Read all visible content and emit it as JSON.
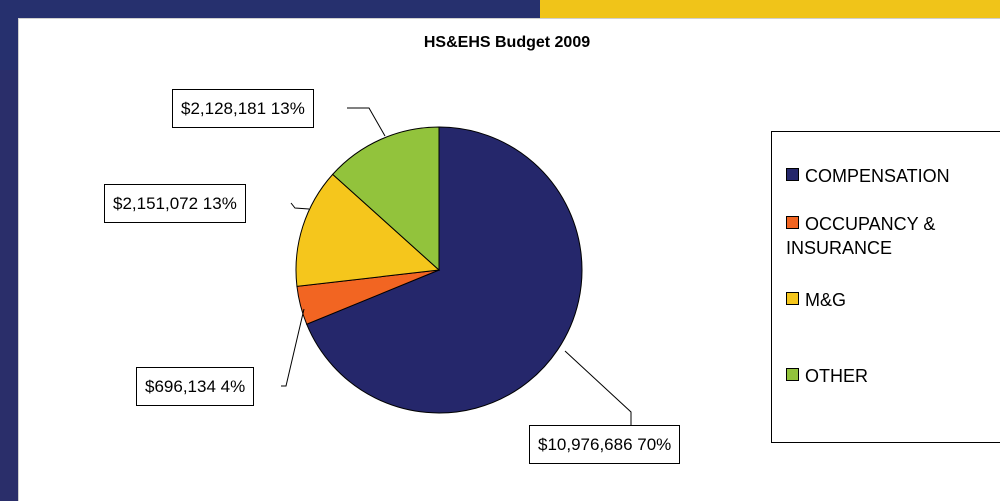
{
  "chart_data": {
    "type": "pie",
    "title": "HS&EHS Budget 2009",
    "slices": [
      {
        "label": "COMPENSATION",
        "value": 10976686,
        "percent": 70,
        "color": "#25276b",
        "display_value": "$10,976,686",
        "display_percent": "70%"
      },
      {
        "label": "OCCUPANCY & INSURANCE",
        "value": 696134,
        "percent": 4,
        "color": "#f26522",
        "display_value": "$696,134",
        "display_percent": "4%"
      },
      {
        "label": "M&G",
        "value": 2151072,
        "percent": 13,
        "color": "#f5c61c",
        "display_value": "$2,151,072",
        "display_percent": "13%"
      },
      {
        "label": "OTHER",
        "value": 2128181,
        "percent": 13,
        "color": "#92c33c",
        "display_value": "$2,128,181",
        "display_percent": "13%"
      }
    ],
    "legend": {
      "placement": "right",
      "items": [
        "COMPENSATION",
        "OCCUPANCY &",
        "INSURANCE",
        "M&G",
        "OTHER"
      ]
    }
  },
  "callouts": {
    "compensation": "$10,976,686  70%",
    "occupancy": "$696,134 4%",
    "mg": "$2,151,072  13%",
    "other": "$2,128,181  13%"
  },
  "colors": {
    "header_blue": "#26306e",
    "header_gold": "#f0c419"
  }
}
